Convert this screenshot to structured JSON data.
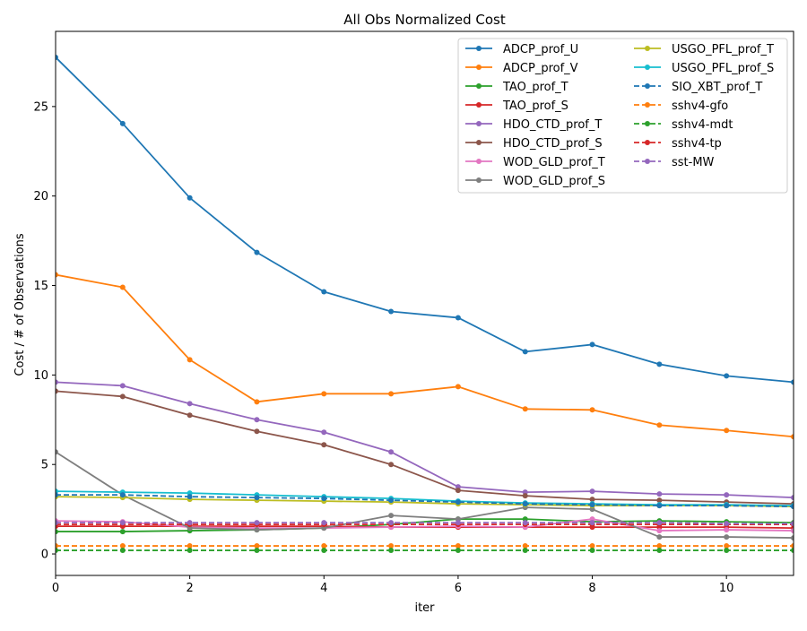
{
  "chart_data": {
    "type": "line",
    "title": "All Obs Normalized Cost",
    "xlabel": "iter",
    "ylabel": "Cost / # of Observations",
    "xlim": [
      0,
      11
    ],
    "ylim": [
      -1.2,
      29.2
    ],
    "xticks": [
      0,
      2,
      4,
      6,
      8,
      10
    ],
    "yticks": [
      0,
      5,
      10,
      15,
      20,
      25
    ],
    "grid": false,
    "legend_position": "top-right",
    "x": [
      0,
      1,
      2,
      3,
      4,
      5,
      6,
      7,
      8,
      9,
      10,
      11
    ],
    "series": [
      {
        "name": "ADCP_prof_U",
        "color": "#1f77b4",
        "dashed": false,
        "values": [
          27.75,
          24.05,
          19.9,
          16.85,
          14.65,
          13.55,
          13.2,
          11.3,
          11.7,
          10.6,
          9.95,
          9.6
        ]
      },
      {
        "name": "ADCP_prof_V",
        "color": "#ff7f0e",
        "dashed": false,
        "values": [
          15.6,
          14.9,
          10.85,
          8.5,
          8.95,
          8.95,
          9.35,
          8.1,
          8.05,
          7.2,
          6.9,
          6.55
        ]
      },
      {
        "name": "TAO_prof_T",
        "color": "#2ca02c",
        "dashed": false,
        "values": [
          1.25,
          1.25,
          1.3,
          1.35,
          1.45,
          1.65,
          1.95,
          1.95,
          1.8,
          1.85,
          1.8,
          1.75
        ]
      },
      {
        "name": "TAO_prof_S",
        "color": "#d62728",
        "dashed": false,
        "values": [
          1.55,
          1.55,
          1.55,
          1.55,
          1.55,
          1.5,
          1.5,
          1.5,
          1.5,
          1.5,
          1.5,
          1.45
        ]
      },
      {
        "name": "HDO_CTD_prof_T",
        "color": "#9467bd",
        "dashed": false,
        "values": [
          9.6,
          9.4,
          8.4,
          7.5,
          6.8,
          5.7,
          3.75,
          3.45,
          3.5,
          3.35,
          3.3,
          3.15
        ]
      },
      {
        "name": "HDO_CTD_prof_S",
        "color": "#8c564b",
        "dashed": false,
        "values": [
          9.1,
          8.8,
          7.75,
          6.85,
          6.1,
          5.0,
          3.55,
          3.25,
          3.05,
          3.0,
          2.9,
          2.8
        ]
      },
      {
        "name": "WOD_GLD_prof_T",
        "color": "#e377c2",
        "dashed": false,
        "values": [
          1.85,
          1.8,
          1.5,
          1.45,
          1.45,
          1.5,
          1.55,
          1.5,
          1.95,
          1.3,
          1.35,
          1.3
        ]
      },
      {
        "name": "WOD_GLD_prof_S",
        "color": "#7f7f7f",
        "dashed": false,
        "values": [
          5.7,
          3.3,
          1.45,
          1.35,
          1.45,
          2.15,
          1.95,
          2.6,
          2.5,
          0.95,
          0.95,
          0.9
        ]
      },
      {
        "name": "USGO_PFL_prof_T",
        "color": "#bcbd22",
        "dashed": false,
        "values": [
          3.2,
          3.15,
          3.05,
          3.0,
          2.95,
          2.9,
          2.8,
          2.75,
          2.7,
          2.7,
          2.7,
          2.65
        ]
      },
      {
        "name": "USGO_PFL_prof_S",
        "color": "#17becf",
        "dashed": false,
        "values": [
          3.5,
          3.45,
          3.4,
          3.3,
          3.2,
          3.1,
          2.95,
          2.85,
          2.8,
          2.75,
          2.75,
          2.7
        ]
      },
      {
        "name": "SIO_XBT_prof_T",
        "color": "#1f77b4",
        "dashed": true,
        "values": [
          3.3,
          3.3,
          3.2,
          3.15,
          3.1,
          3.0,
          2.9,
          2.8,
          2.75,
          2.7,
          2.7,
          2.65
        ]
      },
      {
        "name": "sshv4-gfo",
        "color": "#ff7f0e",
        "dashed": true,
        "values": [
          0.45,
          0.45,
          0.45,
          0.45,
          0.45,
          0.45,
          0.45,
          0.45,
          0.45,
          0.45,
          0.45,
          0.45
        ]
      },
      {
        "name": "sshv4-mdt",
        "color": "#2ca02c",
        "dashed": true,
        "values": [
          0.2,
          0.2,
          0.2,
          0.2,
          0.2,
          0.2,
          0.2,
          0.2,
          0.2,
          0.2,
          0.2,
          0.2
        ]
      },
      {
        "name": "sshv4-tp",
        "color": "#d62728",
        "dashed": true,
        "values": [
          1.65,
          1.65,
          1.65,
          1.65,
          1.65,
          1.65,
          1.65,
          1.65,
          1.65,
          1.65,
          1.65,
          1.65
        ]
      },
      {
        "name": "sst-MW",
        "color": "#9467bd",
        "dashed": true,
        "values": [
          1.75,
          1.75,
          1.75,
          1.75,
          1.75,
          1.75,
          1.75,
          1.75,
          1.75,
          1.75,
          1.7,
          1.7
        ]
      }
    ]
  }
}
